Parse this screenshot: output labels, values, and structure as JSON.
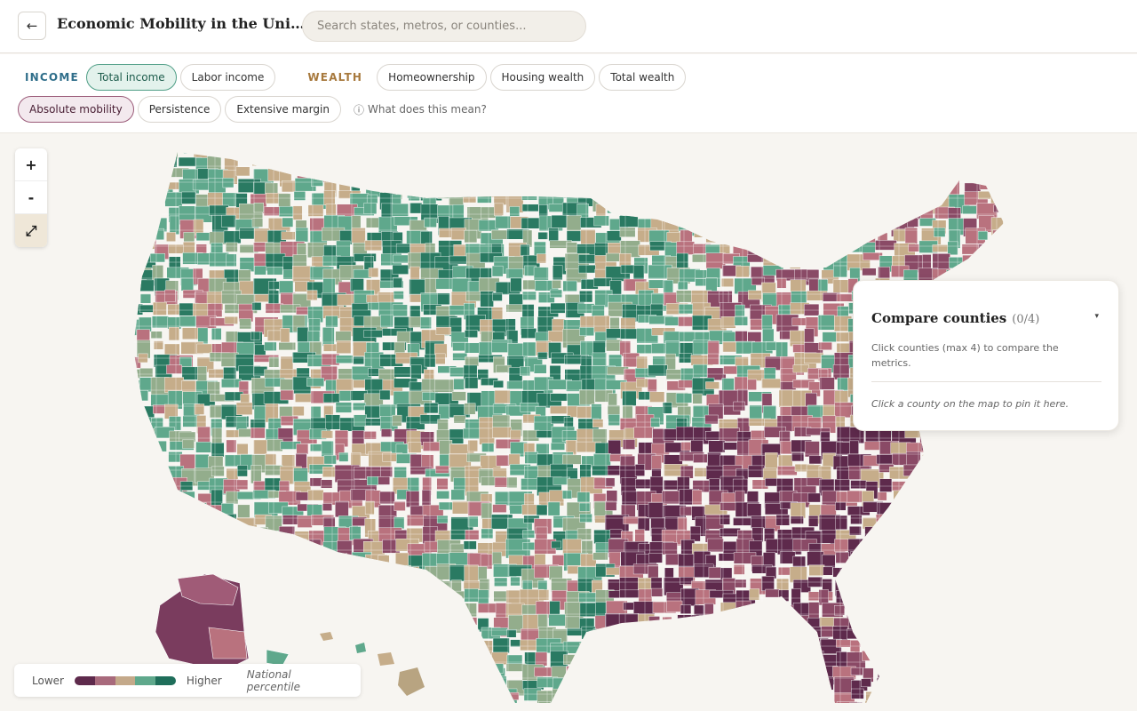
{
  "header": {
    "back_icon": "←",
    "title": "Economic Mobility in the United States",
    "search_placeholder": "Search states, metros, or counties..."
  },
  "filters": {
    "income_label": "INCOME",
    "income_options": [
      "Total income",
      "Labor income"
    ],
    "income_selected": "Total income",
    "wealth_label": "WEALTH",
    "wealth_options": [
      "Homeownership",
      "Housing wealth",
      "Total wealth"
    ],
    "metric_options": [
      "Absolute mobility",
      "Persistence",
      "Extensive margin"
    ],
    "metric_selected": "Absolute mobility",
    "help_icon": "ⓘ",
    "help_text": "What does this mean?"
  },
  "zoom": {
    "in_label": "+",
    "out_label": "-",
    "fit_icon": "⤢"
  },
  "compare": {
    "title": "Compare counties",
    "count": "(0/4)",
    "toggle_icon": "▾",
    "description": "Click counties (max 4) to compare the metrics.",
    "hint": "Click a county on the map to pin it here."
  },
  "legend": {
    "low_label": "Lower",
    "high_label": "Higher",
    "note": "National percentile",
    "colors": [
      "#5e2a4c",
      "#a86a7c",
      "#c4a98a",
      "#5fa88c",
      "#1f6e5a"
    ]
  },
  "map_colors": {
    "dark_plum": "#5e2a4c",
    "plum": "#8a4a66",
    "rose": "#b9727e",
    "tan": "#c6ad8a",
    "sage": "#93ad8c",
    "green": "#5fa88c",
    "dark_green": "#2a7a62",
    "background": "#f7f5f1"
  }
}
